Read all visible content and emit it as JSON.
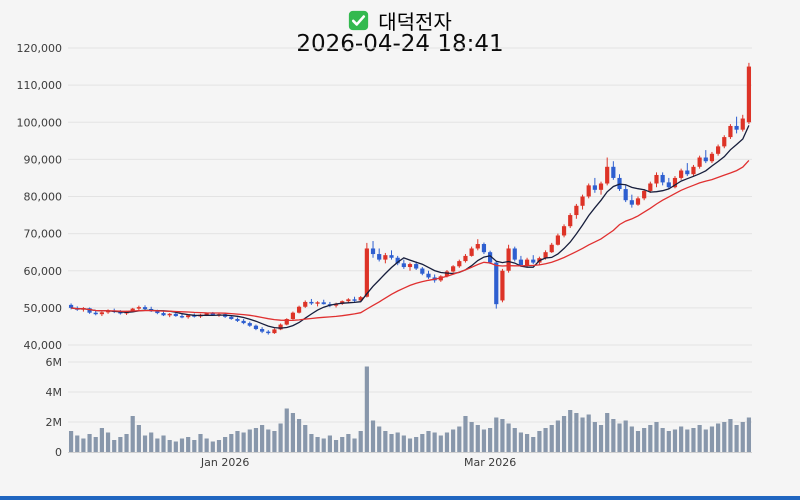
{
  "header": {
    "checkbox_icon": "green-checked-box",
    "title": "대덕전자",
    "subtitle": "2026-04-24 18:41"
  },
  "colors": {
    "background": "#f5f5f5",
    "up_candle": "#dd3327",
    "down_candle": "#2e5fd0",
    "volume_bar": "#8897ab",
    "ma_short": "#171e3c",
    "ma_long": "#e03030",
    "gridline": "#e3e3e3",
    "checkbox_green": "#33b94f",
    "bottom_strip": "#2066c0"
  },
  "chart_data": {
    "type": "candlestick_with_volume",
    "title": "대덕전자",
    "timestamp": "2026-04-24 18:41",
    "price_unit": "KRW, values in thousands",
    "volume_unit": "shares, values in millions",
    "y_axis": {
      "min": 40,
      "max": 120,
      "tick_step": 10,
      "labels": [
        "40,000",
        "50,000",
        "60,000",
        "70,000",
        "80,000",
        "90,000",
        "100,000",
        "110,000",
        "120,000"
      ]
    },
    "volume_axis": {
      "min": 0,
      "max": 6,
      "tick_step": 2,
      "labels": [
        "0",
        "2M",
        "4M",
        "6M"
      ]
    },
    "x_labels": [
      {
        "label": "Jan 2026",
        "index": 25
      },
      {
        "label": "Mar 2026",
        "index": 68
      }
    ],
    "moving_averages": [
      {
        "name": "ma-short",
        "period": 7,
        "color": "#171e3c"
      },
      {
        "name": "ma-long",
        "period": 20,
        "color": "#e03030"
      }
    ],
    "candle_format": [
      "open",
      "high",
      "low",
      "close",
      "volume"
    ],
    "candles": [
      [
        50.8,
        51.2,
        49.6,
        50.0,
        1.4
      ],
      [
        50.0,
        50.4,
        49.2,
        49.5,
        1.1
      ],
      [
        49.5,
        50.2,
        49.0,
        49.9,
        0.9
      ],
      [
        49.9,
        50.1,
        48.4,
        48.7,
        1.2
      ],
      [
        48.7,
        49.3,
        48.0,
        48.3,
        1.0
      ],
      [
        48.3,
        49.0,
        47.8,
        48.8,
        1.6
      ],
      [
        48.8,
        49.6,
        48.4,
        49.3,
        1.3
      ],
      [
        49.3,
        49.8,
        48.6,
        48.9,
        0.8
      ],
      [
        48.9,
        49.4,
        48.2,
        48.5,
        1.0
      ],
      [
        48.5,
        49.2,
        48.1,
        49.0,
        1.2
      ],
      [
        49.0,
        50.0,
        48.8,
        49.8,
        2.4
      ],
      [
        49.8,
        50.6,
        49.3,
        50.2,
        1.8
      ],
      [
        50.2,
        50.7,
        49.5,
        49.7,
        1.1
      ],
      [
        49.7,
        50.3,
        48.9,
        49.1,
        1.3
      ],
      [
        49.1,
        49.5,
        48.3,
        48.6,
        0.9
      ],
      [
        48.6,
        49.0,
        47.8,
        48.0,
        1.1
      ],
      [
        48.0,
        48.6,
        47.5,
        48.4,
        0.8
      ],
      [
        48.4,
        48.8,
        47.6,
        47.8,
        0.7
      ],
      [
        47.8,
        48.3,
        47.2,
        47.5,
        0.9
      ],
      [
        47.5,
        48.2,
        47.1,
        48.0,
        1.0
      ],
      [
        48.0,
        48.5,
        47.4,
        47.7,
        0.8
      ],
      [
        47.7,
        48.4,
        47.3,
        48.2,
        1.2
      ],
      [
        48.2,
        48.7,
        47.8,
        48.5,
        0.9
      ],
      [
        48.5,
        48.9,
        47.9,
        48.1,
        0.7
      ],
      [
        48.1,
        48.6,
        47.6,
        48.3,
        0.8
      ],
      [
        48.3,
        48.5,
        47.3,
        47.6,
        1.0
      ],
      [
        47.6,
        48.0,
        46.8,
        47.0,
        1.2
      ],
      [
        47.0,
        47.4,
        46.2,
        46.5,
        1.4
      ],
      [
        46.5,
        47.0,
        45.6,
        45.9,
        1.3
      ],
      [
        45.9,
        46.3,
        44.9,
        45.2,
        1.5
      ],
      [
        45.2,
        45.5,
        44.0,
        44.3,
        1.6
      ],
      [
        44.3,
        44.8,
        43.2,
        43.6,
        1.8
      ],
      [
        43.6,
        44.0,
        42.8,
        43.2,
        1.5
      ],
      [
        43.2,
        44.5,
        43.0,
        44.2,
        1.4
      ],
      [
        44.2,
        45.8,
        44.0,
        45.5,
        1.9
      ],
      [
        45.5,
        47.2,
        45.3,
        47.0,
        2.9
      ],
      [
        47.0,
        49.0,
        46.8,
        48.7,
        2.6
      ],
      [
        48.7,
        50.6,
        48.5,
        50.3,
        2.2
      ],
      [
        50.3,
        52.0,
        50.0,
        51.6,
        1.8
      ],
      [
        51.6,
        52.4,
        50.8,
        51.2,
        1.2
      ],
      [
        51.2,
        51.8,
        50.4,
        51.5,
        1.0
      ],
      [
        51.5,
        52.2,
        50.9,
        51.0,
        0.9
      ],
      [
        51.0,
        51.6,
        50.2,
        50.6,
        1.1
      ],
      [
        50.6,
        51.4,
        50.1,
        51.1,
        0.8
      ],
      [
        51.1,
        52.0,
        50.8,
        51.8,
        1.0
      ],
      [
        51.8,
        52.6,
        51.2,
        52.3,
        1.2
      ],
      [
        52.3,
        53.0,
        51.6,
        52.0,
        0.9
      ],
      [
        52.0,
        53.2,
        51.8,
        52.9,
        1.4
      ],
      [
        53.0,
        67.5,
        52.8,
        66.0,
        5.7
      ],
      [
        66.0,
        68.0,
        63.5,
        64.5,
        2.1
      ],
      [
        64.5,
        66.0,
        62.5,
        63.0,
        1.7
      ],
      [
        63.0,
        64.8,
        62.0,
        64.2,
        1.4
      ],
      [
        64.2,
        65.5,
        63.0,
        63.5,
        1.2
      ],
      [
        63.5,
        64.0,
        61.5,
        62.0,
        1.3
      ],
      [
        62.0,
        63.0,
        60.5,
        61.0,
        1.1
      ],
      [
        61.0,
        62.2,
        60.0,
        61.8,
        0.9
      ],
      [
        61.8,
        62.5,
        60.2,
        60.6,
        1.0
      ],
      [
        60.6,
        61.0,
        58.8,
        59.2,
        1.2
      ],
      [
        59.2,
        60.0,
        57.8,
        58.2,
        1.4
      ],
      [
        58.2,
        59.0,
        56.8,
        57.4,
        1.3
      ],
      [
        57.4,
        58.8,
        57.0,
        58.5,
        1.1
      ],
      [
        58.5,
        60.2,
        58.2,
        59.8,
        1.3
      ],
      [
        59.8,
        61.5,
        59.5,
        61.2,
        1.5
      ],
      [
        61.2,
        63.0,
        60.8,
        62.6,
        1.7
      ],
      [
        62.6,
        64.5,
        62.2,
        64.0,
        2.4
      ],
      [
        64.0,
        66.5,
        63.8,
        66.0,
        2.0
      ],
      [
        66.0,
        68.5,
        65.5,
        67.2,
        1.8
      ],
      [
        67.2,
        67.6,
        64.5,
        65.0,
        1.5
      ],
      [
        65.0,
        65.4,
        61.8,
        62.2,
        1.6
      ],
      [
        62.2,
        62.5,
        49.8,
        51.0,
        2.3
      ],
      [
        52.0,
        60.5,
        51.5,
        60.0,
        2.2
      ],
      [
        60.0,
        67.0,
        59.5,
        66.0,
        1.9
      ],
      [
        66.0,
        66.5,
        62.5,
        63.0,
        1.6
      ],
      [
        63.0,
        64.0,
        61.0,
        61.5,
        1.3
      ],
      [
        61.5,
        63.5,
        61.0,
        63.0,
        1.2
      ],
      [
        63.0,
        64.2,
        61.8,
        62.2,
        1.0
      ],
      [
        62.2,
        63.8,
        61.5,
        63.4,
        1.4
      ],
      [
        63.4,
        65.5,
        63.0,
        65.0,
        1.6
      ],
      [
        65.0,
        67.5,
        64.8,
        67.0,
        1.8
      ],
      [
        67.0,
        70.0,
        66.8,
        69.5,
        2.1
      ],
      [
        69.5,
        72.5,
        69.0,
        72.0,
        2.4
      ],
      [
        72.0,
        75.5,
        71.5,
        75.0,
        2.8
      ],
      [
        75.0,
        78.0,
        74.0,
        77.5,
        2.6
      ],
      [
        77.5,
        80.5,
        76.5,
        80.0,
        2.3
      ],
      [
        80.0,
        83.5,
        79.5,
        83.0,
        2.5
      ],
      [
        83.0,
        85.0,
        81.0,
        81.8,
        2.0
      ],
      [
        81.8,
        84.0,
        80.5,
        83.5,
        1.8
      ],
      [
        83.5,
        90.5,
        83.0,
        88.0,
        2.6
      ],
      [
        88.0,
        89.5,
        84.5,
        85.0,
        2.2
      ],
      [
        85.0,
        86.0,
        81.5,
        82.0,
        1.9
      ],
      [
        82.0,
        83.0,
        78.5,
        79.0,
        2.1
      ],
      [
        79.0,
        80.5,
        77.0,
        77.8,
        1.7
      ],
      [
        77.8,
        80.0,
        77.5,
        79.5,
        1.4
      ],
      [
        79.5,
        82.0,
        79.0,
        81.5,
        1.6
      ],
      [
        81.5,
        84.0,
        81.0,
        83.5,
        1.8
      ],
      [
        83.5,
        86.5,
        82.5,
        85.8,
        2.0
      ],
      [
        85.8,
        86.5,
        83.0,
        83.8,
        1.6
      ],
      [
        83.8,
        85.0,
        82.0,
        82.5,
        1.4
      ],
      [
        82.5,
        85.5,
        82.2,
        85.0,
        1.5
      ],
      [
        85.0,
        87.5,
        84.5,
        87.0,
        1.7
      ],
      [
        87.0,
        89.0,
        85.5,
        86.0,
        1.5
      ],
      [
        86.0,
        88.5,
        85.5,
        88.0,
        1.6
      ],
      [
        88.0,
        91.0,
        87.5,
        90.5,
        1.8
      ],
      [
        90.5,
        92.5,
        89.0,
        89.5,
        1.5
      ],
      [
        89.5,
        92.0,
        89.0,
        91.5,
        1.7
      ],
      [
        91.5,
        94.0,
        91.0,
        93.5,
        1.9
      ],
      [
        93.5,
        96.5,
        93.0,
        96.0,
        2.0
      ],
      [
        96.0,
        99.5,
        95.5,
        99.0,
        2.2
      ],
      [
        99.0,
        101.5,
        97.0,
        98.0,
        1.8
      ],
      [
        98.0,
        102.0,
        97.5,
        101.0,
        2.0
      ],
      [
        100.0,
        116.0,
        99.5,
        115.0,
        2.3
      ]
    ]
  }
}
